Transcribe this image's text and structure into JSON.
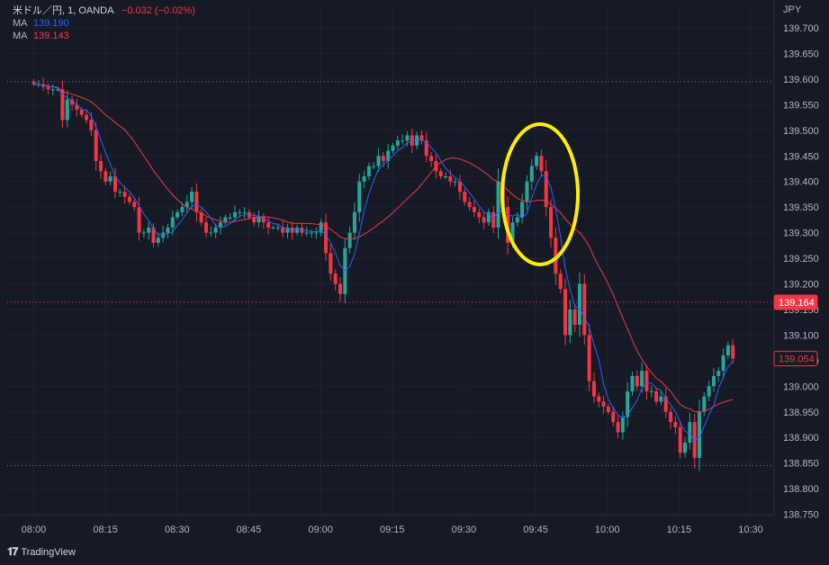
{
  "legend": {
    "symbol": "米ドル／円, 1, OANDA",
    "change": "−0.032 (−0.02%)",
    "ma1_label": "MA",
    "ma1_value": "139.190",
    "ma2_label": "MA",
    "ma2_value": "139.143"
  },
  "brand": "TradingView",
  "colors": {
    "background": "#161a25",
    "up": "#26a69a",
    "down": "#f23645",
    "ma_fast": "#2962ff",
    "ma_slow": "#f23645",
    "highlight": "#ffee00"
  },
  "chart_data": {
    "type": "candlestick",
    "currency": "JPY",
    "ylim": [
      138.75,
      139.7
    ],
    "y_ticks": [
      "139.700",
      "139.650",
      "139.600",
      "139.550",
      "139.500",
      "139.450",
      "139.400",
      "139.350",
      "139.300",
      "139.250",
      "139.200",
      "139.150",
      "139.100",
      "139.050",
      "139.000",
      "138.950",
      "138.900",
      "138.850",
      "138.800",
      "138.750"
    ],
    "x_ticks": [
      "08:00",
      "08:15",
      "08:30",
      "08:45",
      "09:00",
      "09:15",
      "09:30",
      "09:45",
      "10:00",
      "10:15",
      "10:30"
    ],
    "current_price": "139.054",
    "marker_price": "139.164",
    "dotted_levels": [
      139.595,
      139.164,
      138.845
    ],
    "close_series": [
      139.59,
      139.59,
      139.585,
      139.58,
      139.58,
      139.58,
      139.52,
      139.56,
      139.55,
      139.54,
      139.53,
      139.52,
      139.5,
      139.44,
      139.42,
      139.4,
      139.41,
      139.38,
      139.38,
      139.37,
      139.36,
      139.35,
      139.3,
      139.3,
      139.31,
      139.28,
      139.29,
      139.3,
      139.31,
      139.33,
      139.34,
      139.35,
      139.36,
      139.38,
      139.34,
      139.32,
      139.3,
      139.3,
      139.31,
      139.32,
      139.33,
      139.33,
      139.34,
      139.34,
      139.34,
      139.33,
      139.32,
      139.33,
      139.32,
      139.31,
      139.31,
      139.31,
      139.3,
      139.31,
      139.3,
      139.31,
      139.3,
      139.3,
      139.3,
      139.3,
      139.32,
      139.26,
      139.22,
      139.2,
      139.18,
      139.27,
      139.3,
      139.34,
      139.4,
      139.41,
      139.43,
      139.43,
      139.45,
      139.44,
      139.46,
      139.47,
      139.48,
      139.48,
      139.49,
      139.47,
      139.49,
      139.48,
      139.45,
      139.44,
      139.42,
      139.41,
      139.41,
      139.4,
      139.4,
      139.38,
      139.36,
      139.35,
      139.34,
      139.33,
      139.32,
      139.34,
      139.31,
      139.4,
      139.35,
      139.28,
      139.32,
      139.33,
      139.36,
      139.4,
      139.43,
      139.45,
      139.42,
      139.35,
      139.29,
      139.22,
      139.19,
      139.1,
      139.15,
      139.12,
      139.2,
      139.1,
      139.01,
      138.98,
      138.97,
      138.96,
      138.95,
      138.93,
      138.91,
      138.94,
      138.99,
      139.02,
      139.0,
      139.03,
      138.99,
      138.99,
      138.97,
      138.98,
      138.95,
      138.93,
      138.92,
      138.87,
      138.89,
      138.93,
      138.86,
      138.95,
      138.98,
      139.0,
      139.02,
      139.03,
      139.06,
      139.08,
      139.054
    ]
  }
}
